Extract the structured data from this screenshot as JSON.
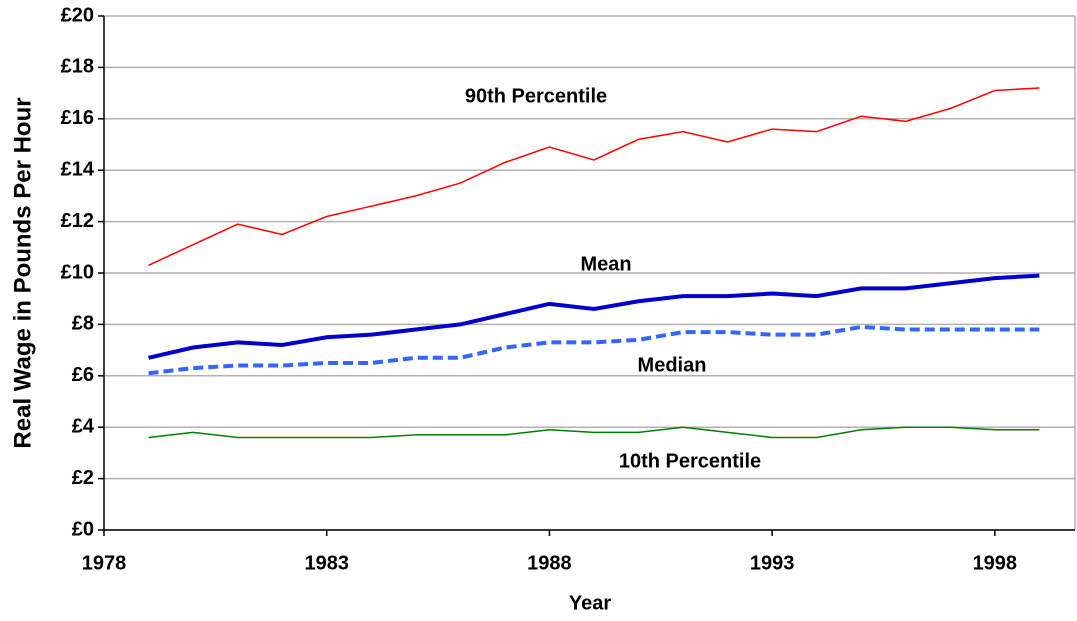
{
  "chart_data": {
    "type": "line",
    "x_label": "Year",
    "y_label": "Real Wage in Pounds Per Hour",
    "x": [
      1979,
      1980,
      1981,
      1982,
      1983,
      1984,
      1985,
      1986,
      1987,
      1988,
      1989,
      1990,
      1991,
      1992,
      1993,
      1994,
      1995,
      1996,
      1997,
      1998,
      1999
    ],
    "series": [
      {
        "name": "90th Percentile",
        "color": "#ff0000",
        "line_width": 1.5,
        "dashed": false,
        "values": [
          10.3,
          11.1,
          11.9,
          11.5,
          12.2,
          12.6,
          13.0,
          13.5,
          14.3,
          14.9,
          14.4,
          15.2,
          15.5,
          15.1,
          15.6,
          15.5,
          16.1,
          15.9,
          16.4,
          17.1,
          17.2
        ]
      },
      {
        "name": "Mean",
        "color": "#0000cc",
        "line_width": 4,
        "dashed": false,
        "values": [
          6.7,
          7.1,
          7.3,
          7.2,
          7.5,
          7.6,
          7.8,
          8.0,
          8.4,
          8.8,
          8.6,
          8.9,
          9.1,
          9.1,
          9.2,
          9.1,
          9.4,
          9.4,
          9.6,
          9.8,
          9.9
        ]
      },
      {
        "name": "Median",
        "color": "#3366ff",
        "line_width": 4,
        "dashed": true,
        "values": [
          6.1,
          6.3,
          6.4,
          6.4,
          6.5,
          6.5,
          6.7,
          6.7,
          7.1,
          7.3,
          7.3,
          7.4,
          7.7,
          7.7,
          7.6,
          7.6,
          7.9,
          7.8,
          7.8,
          7.8,
          7.8
        ]
      },
      {
        "name": "10th Percentile",
        "color": "#008000",
        "line_width": 1.5,
        "dashed": false,
        "values": [
          3.6,
          3.8,
          3.6,
          3.6,
          3.6,
          3.6,
          3.7,
          3.7,
          3.7,
          3.9,
          3.8,
          3.8,
          4.0,
          3.8,
          3.6,
          3.6,
          3.9,
          4.0,
          4.0,
          3.9,
          3.9
        ]
      }
    ],
    "xlim": [
      1978,
      1999.8
    ],
    "xticks": [
      1978,
      1983,
      1988,
      1993,
      1998
    ],
    "ylim": [
      0,
      20
    ],
    "yticks": [
      {
        "value": 0,
        "label": "£0"
      },
      {
        "value": 2,
        "label": "£2"
      },
      {
        "value": 4,
        "label": "£4"
      },
      {
        "value": 6,
        "label": "£6"
      },
      {
        "value": 8,
        "label": "£8"
      },
      {
        "value": 10,
        "label": "£10"
      },
      {
        "value": 12,
        "label": "£12"
      },
      {
        "value": 14,
        "label": "£14"
      },
      {
        "value": 16,
        "label": "£16"
      },
      {
        "value": 18,
        "label": "£18"
      },
      {
        "value": 20,
        "label": "£20"
      }
    ],
    "grid": true
  }
}
